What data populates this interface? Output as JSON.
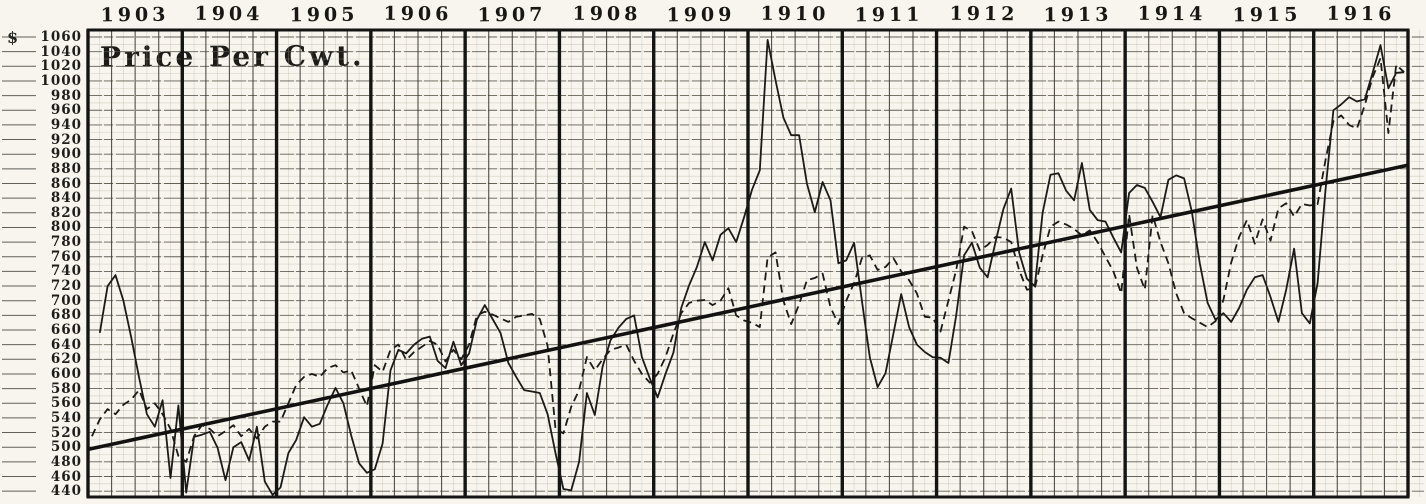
{
  "page": {
    "kind": "scanned hand-drawn price chart",
    "background": "#f7f5ee",
    "ink": "#1d1c1a"
  },
  "chart_data": {
    "type": "line",
    "title": "Price Per Cwt.",
    "unit_prefix": "$",
    "x_range": [
      1903,
      1917
    ],
    "years": [
      "1903",
      "1904",
      "1905",
      "1906",
      "1907",
      "1908",
      "1909",
      "1910",
      "1911",
      "1912",
      "1913",
      "1914",
      "1915",
      "1916"
    ],
    "y_axis": {
      "min": 440,
      "max": 1060,
      "step": 20,
      "ticks": [
        1060,
        1040,
        1020,
        1000,
        980,
        960,
        940,
        920,
        900,
        880,
        860,
        840,
        820,
        800,
        780,
        760,
        740,
        720,
        700,
        680,
        660,
        640,
        620,
        600,
        580,
        560,
        540,
        520,
        500,
        480,
        460,
        440
      ]
    },
    "grid": "graph paper: fine mesh, 20-dollar horizontal rules, quarterly vertical rules, heavy yearly rules",
    "legend_position": "none",
    "sampling": "monthly (estimated from hand-drawn scan)",
    "series": [
      {
        "name": "price line (solid)",
        "style": "solid",
        "values": [
          null,
          656,
          720,
          735,
          700,
          650,
          595,
          545,
          528,
          564,
          458,
          557,
          438,
          514,
          517,
          521,
          499,
          455,
          500,
          507,
          482,
          528,
          453,
          435,
          445,
          492,
          510,
          541,
          528,
          532,
          558,
          581,
          560,
          516,
          478,
          465,
          470,
          505,
          605,
          633,
          628,
          640,
          648,
          651,
          618,
          608,
          644,
          612,
          628,
          674,
          694,
          675,
          656,
          615,
          596,
          578,
          576,
          574,
          545,
          492,
          443,
          441,
          480,
          574,
          544,
          610,
          646,
          663,
          675,
          680,
          623,
          594,
          568,
          600,
          629,
          690,
          721,
          746,
          780,
          755,
          790,
          799,
          780,
          814,
          851,
          878,
          1056,
          1001,
          950,
          926,
          926,
          860,
          821,
          862,
          837,
          751,
          755,
          779,
          700,
          623,
          582,
          601,
          655,
          709,
          664,
          640,
          630,
          623,
          622,
          615,
          680,
          762,
          779,
          745,
          732,
          780,
          825,
          853,
          766,
          730,
          720,
          820,
          872,
          874,
          850,
          837,
          888,
          824,
          810,
          808,
          786,
          766,
          847,
          858,
          854,
          835,
          814,
          865,
          871,
          867,
          821,
          751,
          697,
          674,
          683,
          671,
          690,
          715,
          732,
          735,
          705,
          671,
          715,
          771,
          683,
          669,
          724,
          851,
          960,
          968,
          978,
          972,
          975,
          1011,
          1049,
          990,
          1011,
          1012
        ]
      },
      {
        "name": "price line (dashed)",
        "style": "dashed",
        "values": [
          515,
          538,
          552,
          545,
          558,
          565,
          578,
          552,
          560,
          545,
          525,
          488,
          480,
          515,
          530,
          525,
          515,
          522,
          530,
          515,
          525,
          512,
          528,
          535,
          535,
          560,
          585,
          596,
          600,
          596,
          608,
          612,
          602,
          605,
          580,
          556,
          612,
          603,
          633,
          640,
          619,
          630,
          637,
          645,
          640,
          617,
          633,
          620,
          640,
          680,
          685,
          681,
          676,
          671,
          678,
          680,
          682,
          675,
          638,
          525,
          519,
          555,
          578,
          623,
          605,
          620,
          633,
          636,
          640,
          618,
          600,
          588,
          600,
          623,
          655,
          683,
          697,
          700,
          701,
          694,
          700,
          717,
          680,
          673,
          670,
          664,
          759,
          766,
          700,
          668,
          695,
          728,
          731,
          737,
          691,
          668,
          700,
          724,
          758,
          762,
          742,
          746,
          758,
          740,
          728,
          710,
          678,
          677,
          658,
          700,
          742,
          801,
          795,
          769,
          776,
          787,
          786,
          780,
          742,
          715,
          717,
          762,
          801,
          808,
          804,
          798,
          789,
          796,
          780,
          760,
          740,
          710,
          818,
          745,
          715,
          817,
          780,
          751,
          710,
          683,
          676,
          670,
          664,
          672,
          701,
          752,
          787,
          810,
          778,
          811,
          782,
          826,
          833,
          815,
          832,
          830,
          832,
          892,
          945,
          953,
          940,
          935,
          967,
          1005,
          1031,
          929,
          1022,
          1012
        ]
      },
      {
        "name": "trend line (straight)",
        "style": "trend",
        "value_start": 497,
        "value_end": 885
      }
    ]
  }
}
